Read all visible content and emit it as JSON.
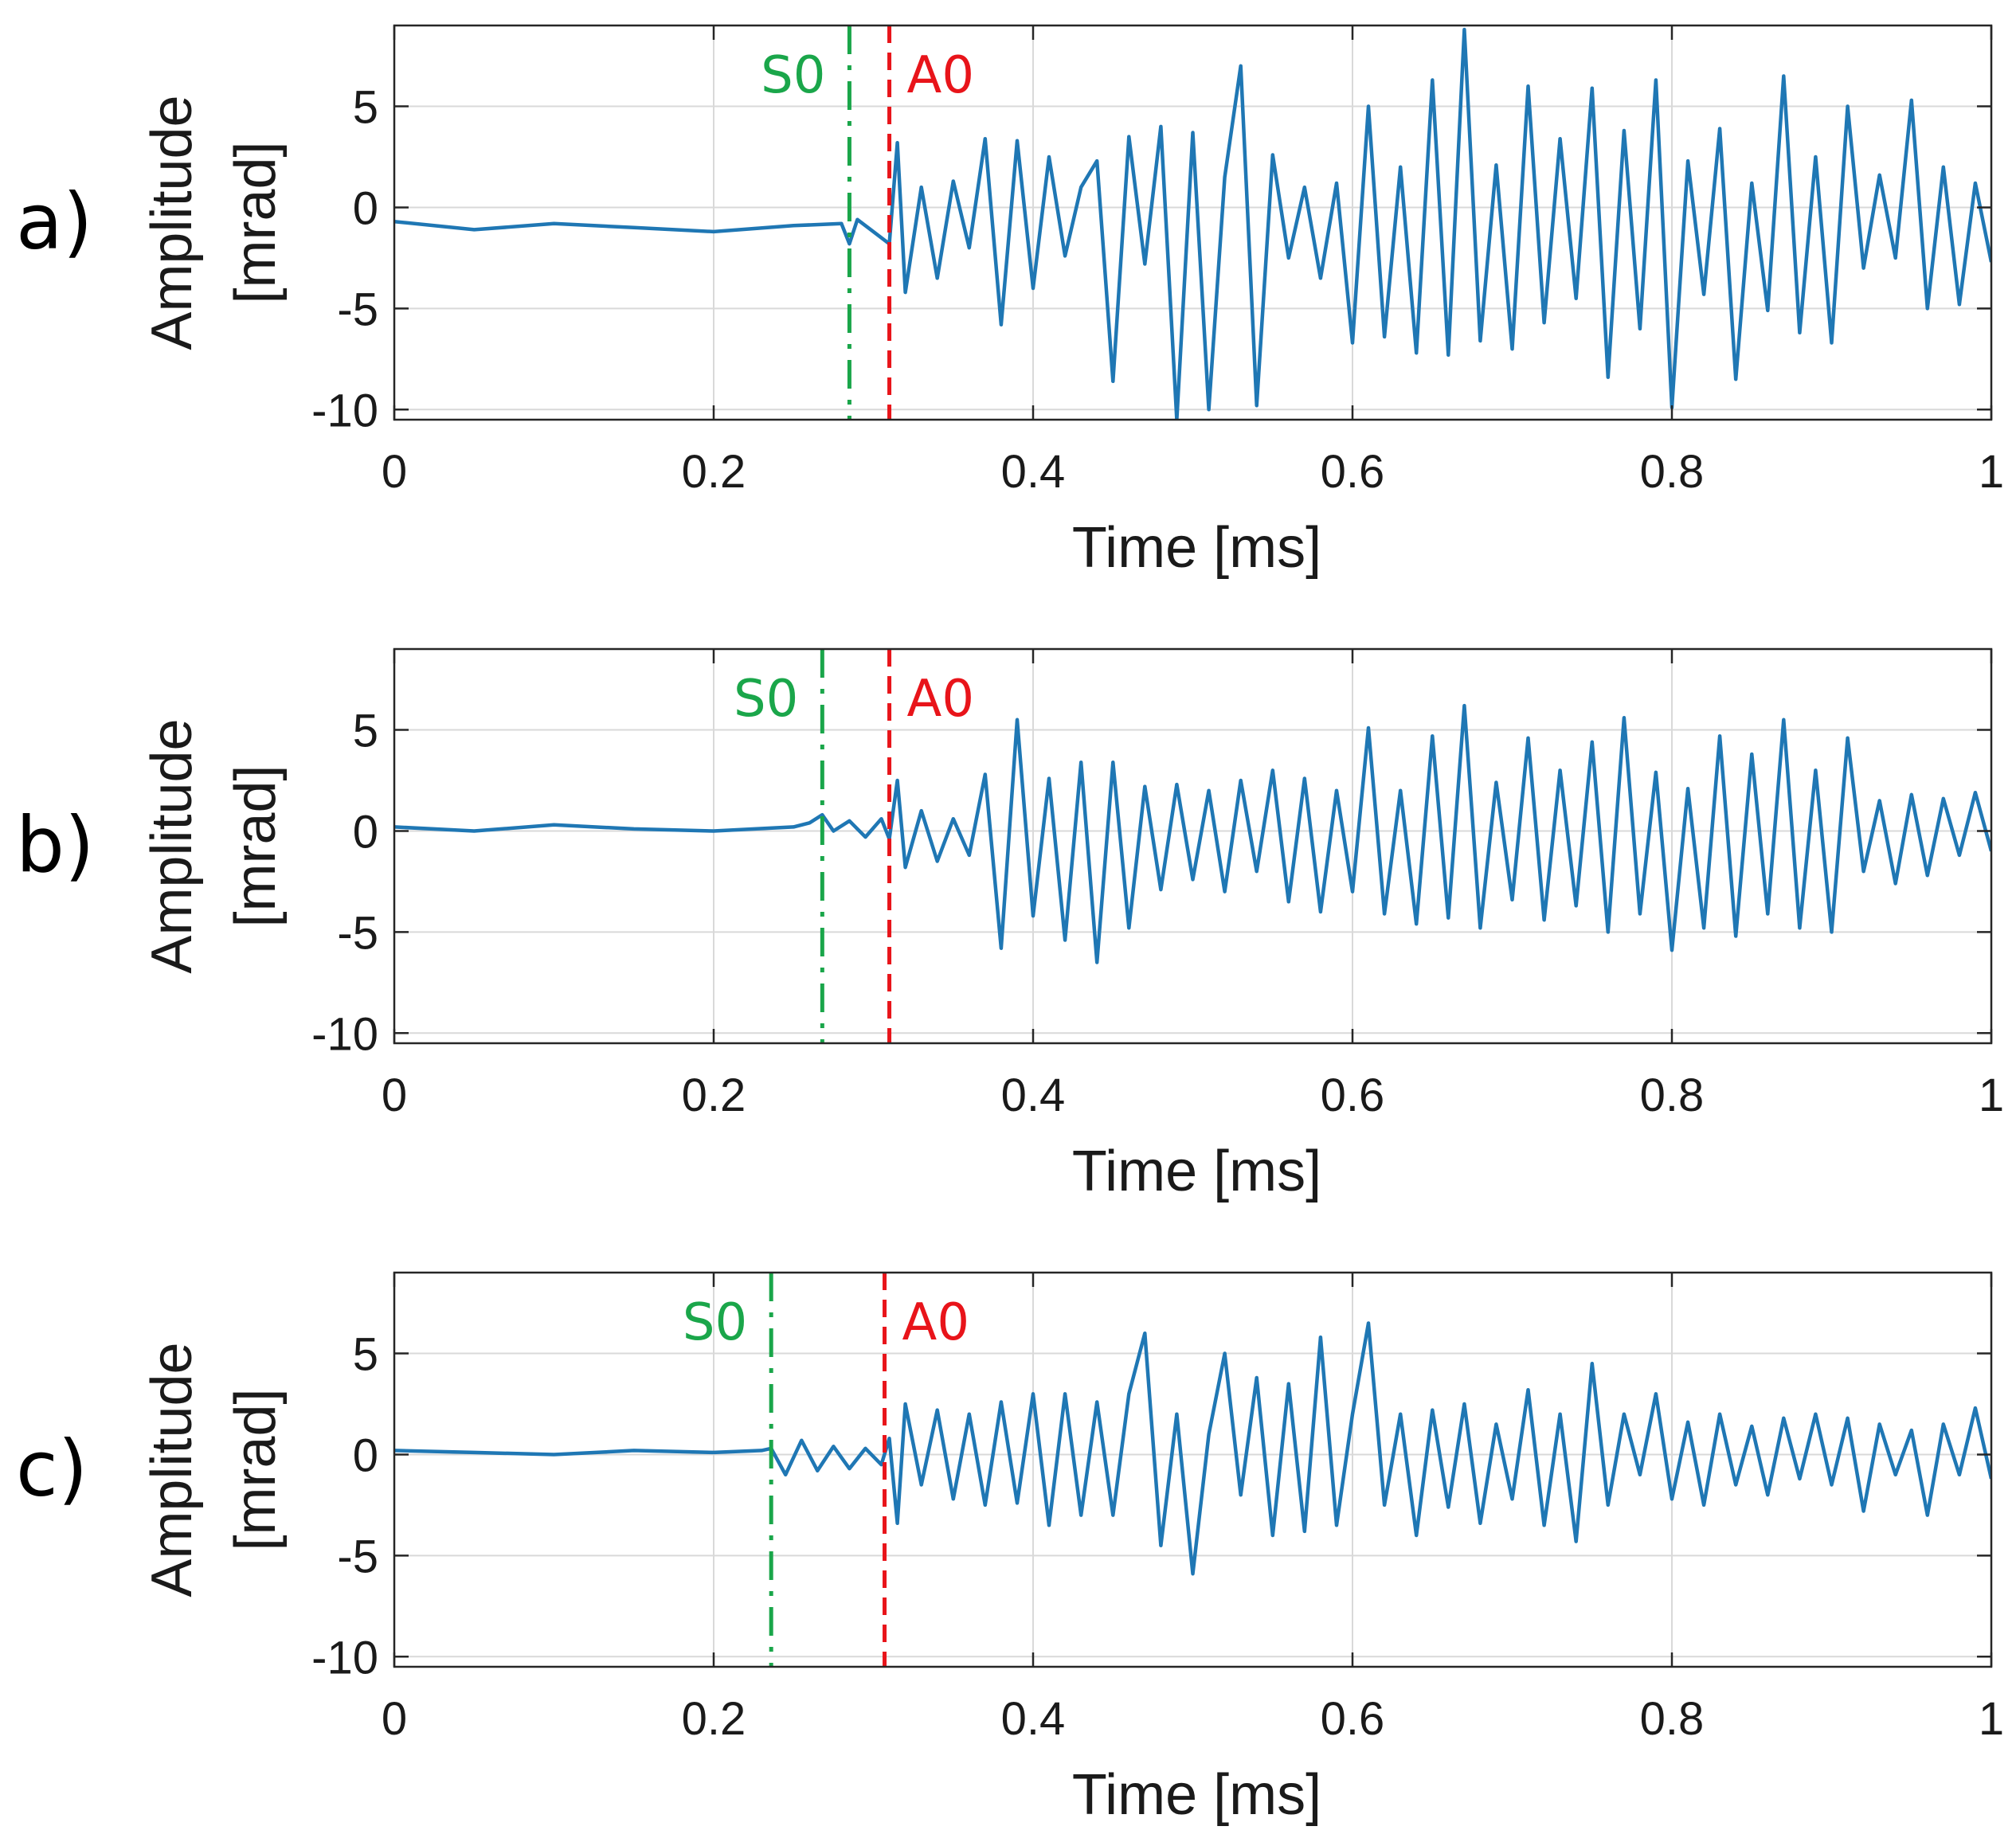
{
  "figure": {
    "colors": {
      "signal": "#1f77b4",
      "s0": "#1aa64a",
      "a0": "#e8141a",
      "axes": "#262626",
      "grid": "#d9d9d9"
    }
  },
  "chart_data": [
    {
      "type": "line",
      "panel_label": "a)",
      "xlabel": "Time [ms]",
      "ylabel_line1": "Amplitude",
      "ylabel_line2": "[mrad]",
      "xlim": [
        0,
        1
      ],
      "ylim": [
        -10.5,
        9
      ],
      "xticks": [
        0,
        0.2,
        0.4,
        0.6,
        0.8,
        1
      ],
      "xtick_labels": [
        "0",
        "0.2",
        "0.4",
        "0.6",
        "0.8",
        "1"
      ],
      "yticks": [
        5,
        0,
        -5,
        -10
      ],
      "ytick_labels": [
        "5",
        "0",
        "-5",
        "-10"
      ],
      "markers": [
        {
          "label": "S0",
          "x": 0.285,
          "style": "dashdot",
          "color": "#1aa64a"
        },
        {
          "label": "A0",
          "x": 0.31,
          "style": "dashed",
          "color": "#e8141a"
        }
      ],
      "series": [
        {
          "name": "signal",
          "color": "#1f77b4",
          "x": [
            0,
            0.05,
            0.1,
            0.15,
            0.2,
            0.25,
            0.28,
            0.285,
            0.29,
            0.3,
            0.31,
            0.315,
            0.32,
            0.33,
            0.34,
            0.35,
            0.36,
            0.37,
            0.38,
            0.39,
            0.4,
            0.41,
            0.42,
            0.43,
            0.44,
            0.45,
            0.46,
            0.47,
            0.48,
            0.49,
            0.5,
            0.51,
            0.52,
            0.53,
            0.54,
            0.55,
            0.56,
            0.57,
            0.58,
            0.59,
            0.6,
            0.61,
            0.62,
            0.63,
            0.64,
            0.65,
            0.66,
            0.67,
            0.68,
            0.69,
            0.7,
            0.71,
            0.72,
            0.73,
            0.74,
            0.75,
            0.76,
            0.77,
            0.78,
            0.79,
            0.8,
            0.81,
            0.82,
            0.83,
            0.84,
            0.85,
            0.86,
            0.87,
            0.88,
            0.89,
            0.9,
            0.91,
            0.92,
            0.93,
            0.94,
            0.95,
            0.96,
            0.97,
            0.98,
            0.99,
            1.0
          ],
          "y": [
            -0.7,
            -1.1,
            -0.8,
            -1.0,
            -1.2,
            -0.9,
            -0.8,
            -1.8,
            -0.6,
            -1.2,
            -1.8,
            3.2,
            -4.2,
            1.0,
            -3.5,
            1.3,
            -2.0,
            3.4,
            -5.8,
            3.3,
            -4.0,
            2.5,
            -2.4,
            1.0,
            2.3,
            -8.6,
            3.5,
            -2.8,
            4.0,
            -10.5,
            3.7,
            -10.0,
            1.5,
            7.0,
            -9.8,
            2.6,
            -2.5,
            1.0,
            -3.5,
            1.2,
            -6.7,
            5.0,
            -6.4,
            2.0,
            -7.2,
            6.3,
            -7.3,
            8.8,
            -6.6,
            2.1,
            -7.0,
            6.0,
            -5.7,
            3.4,
            -4.5,
            5.9,
            -8.4,
            3.8,
            -6.0,
            6.3,
            -9.9,
            2.3,
            -4.3,
            3.9,
            -8.5,
            1.2,
            -5.1,
            6.5,
            -6.2,
            2.5,
            -6.7,
            5.0,
            -3.0,
            1.6,
            -2.5,
            5.3,
            -5.0,
            2.0,
            -4.8,
            1.2,
            -2.7
          ]
        }
      ]
    },
    {
      "type": "line",
      "panel_label": "b)",
      "xlabel": "Time [ms]",
      "ylabel_line1": "Amplitude",
      "ylabel_line2": "[mrad]",
      "xlim": [
        0,
        1
      ],
      "ylim": [
        -10.5,
        9
      ],
      "xticks": [
        0,
        0.2,
        0.4,
        0.6,
        0.8,
        1
      ],
      "xtick_labels": [
        "0",
        "0.2",
        "0.4",
        "0.6",
        "0.8",
        "1"
      ],
      "yticks": [
        5,
        0,
        -5,
        -10
      ],
      "ytick_labels": [
        "5",
        "0",
        "-5",
        "-10"
      ],
      "markers": [
        {
          "label": "S0",
          "x": 0.268,
          "style": "dashdot",
          "color": "#1aa64a"
        },
        {
          "label": "A0",
          "x": 0.31,
          "style": "dashed",
          "color": "#e8141a"
        }
      ],
      "series": [
        {
          "name": "signal",
          "color": "#1f77b4",
          "x": [
            0,
            0.05,
            0.1,
            0.15,
            0.2,
            0.25,
            0.26,
            0.268,
            0.275,
            0.285,
            0.295,
            0.305,
            0.31,
            0.315,
            0.32,
            0.33,
            0.34,
            0.35,
            0.36,
            0.37,
            0.38,
            0.39,
            0.4,
            0.41,
            0.42,
            0.43,
            0.44,
            0.45,
            0.46,
            0.47,
            0.48,
            0.49,
            0.5,
            0.51,
            0.52,
            0.53,
            0.54,
            0.55,
            0.56,
            0.57,
            0.58,
            0.59,
            0.6,
            0.61,
            0.62,
            0.63,
            0.64,
            0.65,
            0.66,
            0.67,
            0.68,
            0.69,
            0.7,
            0.71,
            0.72,
            0.73,
            0.74,
            0.75,
            0.76,
            0.77,
            0.78,
            0.79,
            0.8,
            0.81,
            0.82,
            0.83,
            0.84,
            0.85,
            0.86,
            0.87,
            0.88,
            0.89,
            0.9,
            0.91,
            0.92,
            0.93,
            0.94,
            0.95,
            0.96,
            0.97,
            0.98,
            0.99,
            1.0
          ],
          "y": [
            0.2,
            0.0,
            0.3,
            0.1,
            0.0,
            0.2,
            0.4,
            0.8,
            0.0,
            0.5,
            -0.3,
            0.6,
            -0.4,
            2.5,
            -1.8,
            1.0,
            -1.5,
            0.6,
            -1.2,
            2.8,
            -5.8,
            5.5,
            -4.2,
            2.6,
            -5.4,
            3.4,
            -6.5,
            3.4,
            -4.8,
            2.2,
            -2.9,
            2.3,
            -2.4,
            2.0,
            -3.0,
            2.5,
            -2.0,
            3.0,
            -3.5,
            2.6,
            -4.0,
            2.0,
            -3.0,
            5.1,
            -4.1,
            2.0,
            -4.6,
            4.7,
            -4.3,
            6.2,
            -4.8,
            2.4,
            -3.4,
            4.6,
            -4.4,
            3.0,
            -3.7,
            4.4,
            -5.0,
            5.6,
            -4.1,
            2.9,
            -5.9,
            2.1,
            -4.8,
            4.7,
            -5.2,
            3.8,
            -4.1,
            5.5,
            -4.8,
            3.0,
            -5.0,
            4.6,
            -2.0,
            1.5,
            -2.6,
            1.8,
            -2.2,
            1.6,
            -1.2,
            1.9,
            -1.0
          ]
        }
      ]
    },
    {
      "type": "line",
      "panel_label": "c)",
      "xlabel": "Time [ms]",
      "ylabel_line1": "Amplitude",
      "ylabel_line2": "[mrad]",
      "xlim": [
        0,
        1
      ],
      "ylim": [
        -10.5,
        9
      ],
      "xticks": [
        0,
        0.2,
        0.4,
        0.6,
        0.8,
        1
      ],
      "xtick_labels": [
        "0",
        "0.2",
        "0.4",
        "0.6",
        "0.8",
        "1"
      ],
      "yticks": [
        5,
        0,
        -5,
        -10
      ],
      "ytick_labels": [
        "5",
        "0",
        "-5",
        "-10"
      ],
      "markers": [
        {
          "label": "S0",
          "x": 0.236,
          "style": "dashdot",
          "color": "#1aa64a"
        },
        {
          "label": "A0",
          "x": 0.307,
          "style": "dashed",
          "color": "#e8141a"
        }
      ],
      "series": [
        {
          "name": "signal",
          "color": "#1f77b4",
          "x": [
            0,
            0.05,
            0.1,
            0.15,
            0.2,
            0.23,
            0.236,
            0.245,
            0.255,
            0.265,
            0.275,
            0.285,
            0.295,
            0.305,
            0.31,
            0.315,
            0.32,
            0.33,
            0.34,
            0.35,
            0.36,
            0.37,
            0.38,
            0.39,
            0.4,
            0.41,
            0.42,
            0.43,
            0.44,
            0.45,
            0.46,
            0.47,
            0.48,
            0.49,
            0.5,
            0.51,
            0.52,
            0.53,
            0.54,
            0.55,
            0.56,
            0.57,
            0.58,
            0.59,
            0.6,
            0.61,
            0.62,
            0.63,
            0.64,
            0.65,
            0.66,
            0.67,
            0.68,
            0.69,
            0.7,
            0.71,
            0.72,
            0.73,
            0.74,
            0.75,
            0.76,
            0.77,
            0.78,
            0.79,
            0.8,
            0.81,
            0.82,
            0.83,
            0.84,
            0.85,
            0.86,
            0.87,
            0.88,
            0.89,
            0.9,
            0.91,
            0.92,
            0.93,
            0.94,
            0.95,
            0.96,
            0.97,
            0.98,
            0.99,
            1.0
          ],
          "y": [
            0.2,
            0.1,
            0.0,
            0.2,
            0.1,
            0.2,
            0.3,
            -1.0,
            0.7,
            -0.8,
            0.4,
            -0.7,
            0.3,
            -0.5,
            0.8,
            -3.4,
            2.5,
            -1.5,
            2.2,
            -2.2,
            2.0,
            -2.5,
            2.6,
            -2.4,
            3.0,
            -3.5,
            3.0,
            -3.0,
            2.6,
            -3.0,
            3.0,
            6.0,
            -4.5,
            2.0,
            -5.9,
            1.0,
            5.0,
            -2.0,
            3.8,
            -4.0,
            3.5,
            -3.8,
            5.8,
            -3.5,
            2.0,
            6.5,
            -2.5,
            2.0,
            -4.0,
            2.2,
            -2.6,
            2.5,
            -3.4,
            1.5,
            -2.2,
            3.2,
            -3.5,
            2.0,
            -4.3,
            4.5,
            -2.5,
            2.0,
            -1.0,
            3.0,
            -2.2,
            1.6,
            -2.5,
            2.0,
            -1.5,
            1.4,
            -2.0,
            1.8,
            -1.2,
            2.0,
            -1.5,
            1.8,
            -2.8,
            1.5,
            -1.0,
            1.2,
            -3.0,
            1.5,
            -1.0,
            2.3,
            -1.2
          ]
        }
      ]
    }
  ]
}
